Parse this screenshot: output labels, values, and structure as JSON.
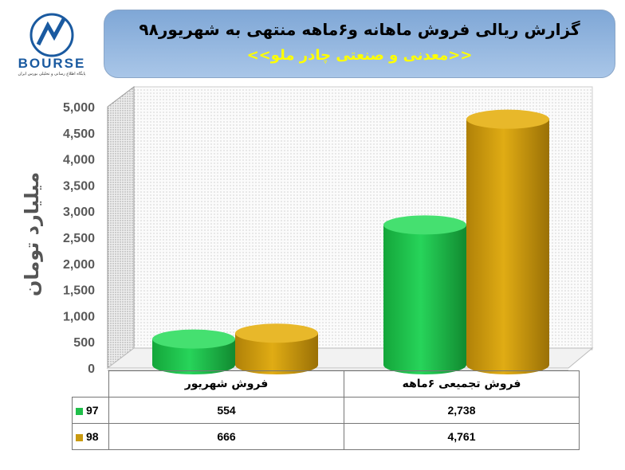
{
  "header": {
    "title": "گزارش ریالی فروش ماهانه و۶ماهه منتهی به شهریور۹۸",
    "subtitle": "<<معدنی و صنعتی چادر ملو>>"
  },
  "logo": {
    "text": "BOURSE",
    "subtext": "پایگاه اطلاع رسانی و تحلیلی بورس ایران"
  },
  "colors": {
    "s97": "#1fbf4a",
    "s98": "#c99a10",
    "titleBar": "#8fb3dd",
    "subtitle": "#ffff00"
  },
  "chart_data": {
    "type": "bar",
    "categories": [
      "فروش شهریور",
      "فروش تجمیعی ۶ماهه"
    ],
    "series": [
      {
        "name": "97",
        "values": [
          554,
          2738
        ],
        "labels": [
          "554",
          "2,738"
        ]
      },
      {
        "name": "98",
        "values": [
          666,
          4761
        ],
        "labels": [
          "666",
          "4,761"
        ]
      }
    ],
    "ylabel": "میلیارد تومان",
    "ylim": [
      0,
      5000
    ],
    "yticks": [
      "0",
      "500",
      "1,000",
      "1,500",
      "2,000",
      "2,500",
      "3,000",
      "3,500",
      "4,000",
      "4,500",
      "5,000"
    ],
    "grid": true,
    "legend": "data-table"
  }
}
